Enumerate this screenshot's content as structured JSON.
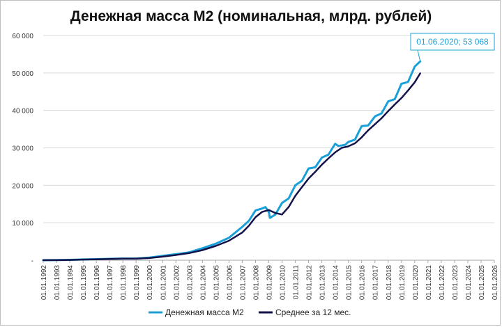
{
  "chart_data": {
    "type": "line",
    "title": "Денежная масса М2 (номинальная, млрд. рублей)",
    "xlabel": "",
    "ylabel": "",
    "ylim": [
      0,
      60000
    ],
    "y_ticks": [
      {
        "value": 0,
        "label": "-"
      },
      {
        "value": 10000,
        "label": "10 000"
      },
      {
        "value": 20000,
        "label": "20 000"
      },
      {
        "value": 30000,
        "label": "30 000"
      },
      {
        "value": 40000,
        "label": "40 000"
      },
      {
        "value": 50000,
        "label": "50 000"
      },
      {
        "value": 60000,
        "label": "60 000"
      }
    ],
    "x_tick_labels": [
      "01.01.1992",
      "01.01.1993",
      "01.01.1994",
      "01.01.1995",
      "01.01.1996",
      "01.01.1997",
      "01.01.1998",
      "01.01.1999",
      "01.01.2000",
      "01.01.2001",
      "01.01.2002",
      "01.01.2003",
      "01.01.2004",
      "01.01.2005",
      "01.01.2006",
      "01.01.2007",
      "01.01.2008",
      "01.01.2009",
      "01.01.2010",
      "01.01.2011",
      "01.01.2012",
      "01.01.2013",
      "01.01.2014",
      "01.01.2015",
      "01.01.2016",
      "01.01.2017",
      "01.01.2018",
      "01.01.2019",
      "01.01.2020",
      "01.01.2021",
      "01.01.2022",
      "01.01.2023",
      "01.01.2024",
      "01.01.2025",
      "01.01.2026"
    ],
    "x_range": [
      "1992-01-01",
      "2026-01-01"
    ],
    "grid": "horizontal",
    "legend_position": "bottom",
    "series": [
      {
        "name": "Денежная масса М2",
        "color": "#1aa0d8",
        "x": [
          "1992-01-01",
          "1993-01-01",
          "1994-01-01",
          "1995-01-01",
          "1996-01-01",
          "1997-01-01",
          "1998-01-01",
          "1999-01-01",
          "2000-01-01",
          "2001-01-01",
          "2002-01-01",
          "2003-01-01",
          "2004-01-01",
          "2005-01-01",
          "2006-01-01",
          "2007-01-01",
          "2007-07-01",
          "2008-01-01",
          "2008-07-01",
          "2008-10-01",
          "2009-01-01",
          "2009-02-01",
          "2009-07-01",
          "2010-01-01",
          "2010-07-01",
          "2011-01-01",
          "2011-07-01",
          "2012-01-01",
          "2012-07-01",
          "2013-01-01",
          "2013-07-01",
          "2014-01-01",
          "2014-04-01",
          "2014-10-01",
          "2015-01-01",
          "2015-07-01",
          "2016-01-01",
          "2016-07-01",
          "2017-01-01",
          "2017-07-01",
          "2018-01-01",
          "2018-07-01",
          "2019-01-01",
          "2019-07-01",
          "2020-01-01",
          "2020-06-01"
        ],
        "values": [
          10,
          30,
          100,
          200,
          280,
          380,
          450,
          450,
          700,
          1150,
          1600,
          2100,
          3200,
          4400,
          6000,
          8900,
          10500,
          13300,
          13800,
          14200,
          12900,
          11300,
          12200,
          15300,
          16500,
          20000,
          21200,
          24500,
          24800,
          27400,
          28200,
          31100,
          30500,
          30800,
          31600,
          32200,
          35800,
          36000,
          38400,
          39200,
          42400,
          43000,
          47100,
          47600,
          51700,
          53068
        ]
      },
      {
        "name": "Среднее за 12 мес.",
        "color": "#13124a",
        "x": [
          "1992-01-01",
          "1993-01-01",
          "1994-01-01",
          "1995-01-01",
          "1996-01-01",
          "1997-01-01",
          "1998-01-01",
          "1999-01-01",
          "2000-01-01",
          "2001-01-01",
          "2002-01-01",
          "2003-01-01",
          "2004-01-01",
          "2005-01-01",
          "2006-01-01",
          "2007-01-01",
          "2007-07-01",
          "2008-01-01",
          "2008-07-01",
          "2009-01-01",
          "2009-07-01",
          "2010-01-01",
          "2010-07-01",
          "2011-01-01",
          "2011-07-01",
          "2012-01-01",
          "2012-07-01",
          "2013-01-01",
          "2013-07-01",
          "2014-01-01",
          "2014-07-01",
          "2015-01-01",
          "2015-07-01",
          "2016-01-01",
          "2016-07-01",
          "2017-01-01",
          "2017-07-01",
          "2018-01-01",
          "2018-07-01",
          "2019-01-01",
          "2019-07-01",
          "2020-01-01",
          "2020-06-01"
        ],
        "values": [
          5,
          20,
          70,
          170,
          250,
          330,
          410,
          430,
          580,
          950,
          1400,
          1900,
          2700,
          3800,
          5200,
          7400,
          9200,
          11500,
          12900,
          13400,
          12600,
          12200,
          14200,
          17200,
          19500,
          21800,
          23600,
          25500,
          27200,
          28800,
          30000,
          30400,
          31200,
          32800,
          34700,
          36300,
          37900,
          39800,
          41600,
          43300,
          45300,
          47500,
          49900
        ]
      }
    ],
    "annotations": [
      {
        "date": "01.06.2020",
        "value": "53 068",
        "text": "01.06.2020;  53 068",
        "series": "Денежная масса М2"
      }
    ]
  }
}
